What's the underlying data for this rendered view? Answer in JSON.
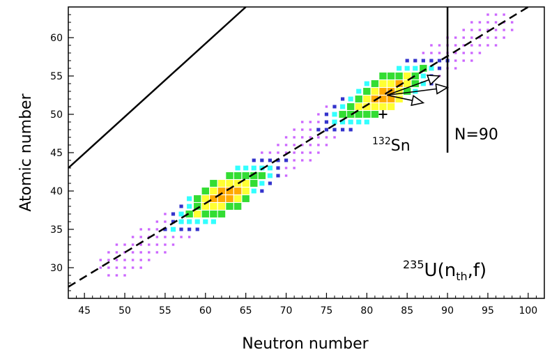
{
  "chart_data": {
    "type": "heatmap",
    "xlabel": "Neutron number",
    "ylabel": "Atomic number",
    "xlim": [
      43,
      102
    ],
    "ylim": [
      26,
      64
    ],
    "xticks": [
      45,
      50,
      55,
      60,
      65,
      70,
      75,
      80,
      85,
      90,
      95,
      100
    ],
    "yticks": [
      30,
      35,
      40,
      45,
      50,
      55,
      60
    ],
    "heat_colors": {
      "1": "#cc66ff",
      "2": "#3333cc",
      "3": "#33ffff",
      "4": "#33dd33",
      "5": "#ffff33",
      "6": "#ffaa00",
      "7": "#ff2200"
    },
    "ridges": [
      {
        "x0": 48,
        "z0": 30,
        "x1": 74,
        "z1": 47,
        "width": 2.2,
        "peak_x": 62,
        "peak_z": 40
      },
      {
        "x0": 71,
        "z0": 46,
        "x1": 97,
        "z1": 62,
        "width": 2.2,
        "peak_x": 82.5,
        "peak_z": 52
      }
    ],
    "lines": [
      {
        "name": "solid-diagonal",
        "style": "solid",
        "points": [
          [
            43,
            43
          ],
          [
            65,
            64
          ]
        ]
      },
      {
        "name": "dashed-diagonal",
        "style": "dashed",
        "points": [
          [
            43,
            27.5
          ],
          [
            100,
            64
          ]
        ]
      },
      {
        "name": "n90-line",
        "style": "solid",
        "points": [
          [
            90,
            45
          ],
          [
            90,
            64
          ]
        ]
      }
    ],
    "markers": [
      {
        "name": "sn132-plus",
        "x": 82,
        "z": 50,
        "symbol": "+"
      }
    ],
    "arrows": [
      {
        "from": [
          82.5,
          52.5
        ],
        "to": [
          89,
          55
        ]
      },
      {
        "from": [
          82.5,
          52.5
        ],
        "to": [
          90,
          53.5
        ]
      },
      {
        "from": [
          82.5,
          52.5
        ],
        "to": [
          87,
          51.5
        ]
      }
    ],
    "annotations": {
      "sn": {
        "sup": "132",
        "text": "Sn"
      },
      "n90": "N=90",
      "reaction": {
        "sup": "235",
        "pre": "U(n",
        "sub": "th",
        "post": ",f)"
      }
    }
  }
}
